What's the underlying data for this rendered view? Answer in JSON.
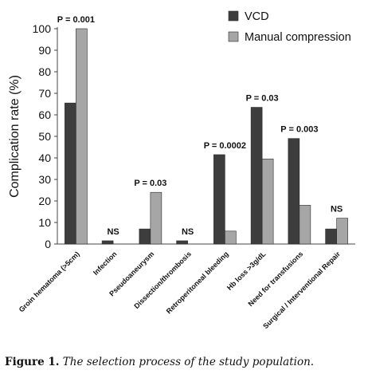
{
  "chart_data": {
    "type": "bar",
    "ylabel": "Complication rate (%)",
    "ylim": [
      0,
      100
    ],
    "yticks": [
      0,
      10,
      20,
      30,
      40,
      50,
      60,
      70,
      80,
      90,
      100
    ],
    "categories": [
      "Groin hematoma (>5cm)",
      "Infection",
      "Pseudoaneurysm",
      "Dissection/thrombosis",
      "Retroperitoneal bleeding",
      "Hb loss >3g/dL",
      "Need for transfusions",
      "Surgical / Interventional Repair"
    ],
    "series": [
      {
        "name": "VCD",
        "color": "#3d3d3d",
        "values": [
          65.5,
          1.5,
          7,
          1.5,
          41.5,
          63.5,
          49,
          7
        ]
      },
      {
        "name": "Manual compression",
        "color": "#a6a6a6",
        "values": [
          100,
          0,
          24,
          0,
          6,
          39.5,
          18,
          12
        ]
      }
    ],
    "annotations": [
      "P = 0.001",
      "NS",
      "P = 0.03",
      "NS",
      "P = 0.0002",
      "P = 0.03",
      "P = 0.003",
      "NS"
    ],
    "legend_position": "top-right",
    "grid": false
  },
  "caption": {
    "label": "Figure 1.",
    "text": "The selection process of the study population."
  }
}
